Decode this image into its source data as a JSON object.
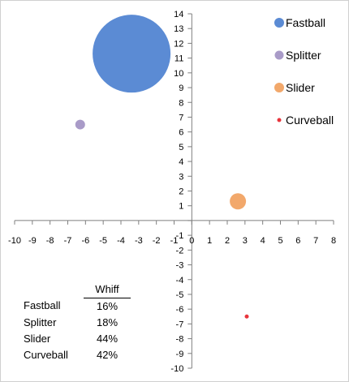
{
  "chart_data": {
    "type": "scatter",
    "subtype": "bubble",
    "xlim": [
      -10,
      8
    ],
    "ylim": [
      -10,
      14
    ],
    "x_ticks": [
      -10,
      -9,
      -8,
      -7,
      -6,
      -5,
      -4,
      -3,
      -2,
      -1,
      0,
      1,
      2,
      3,
      4,
      5,
      6,
      7,
      8
    ],
    "y_ticks": [
      -10,
      -9,
      -8,
      -7,
      -6,
      -5,
      -4,
      -3,
      -2,
      -1,
      0,
      1,
      2,
      3,
      4,
      5,
      6,
      7,
      8,
      9,
      10,
      11,
      12,
      13,
      14
    ],
    "grid": false,
    "legend_position": "top-right",
    "series": [
      {
        "name": "Fastball",
        "x": -3.4,
        "y": 11.3,
        "size": 16,
        "color": "#5b8bd4"
      },
      {
        "name": "Splitter",
        "x": -6.3,
        "y": 6.5,
        "size": 18,
        "color": "#a99bc8"
      },
      {
        "name": "Slider",
        "x": 2.6,
        "y": 1.3,
        "size": 44,
        "color": "#f2a86b"
      },
      {
        "name": "Curveball",
        "x": 3.1,
        "y": -6.5,
        "size": 42,
        "color": "#e8343c"
      }
    ],
    "bubble_radius_px": [
      48,
      6,
      10,
      2.5
    ]
  },
  "table": {
    "header": "Whiff",
    "rows": [
      {
        "name": "Fastball",
        "value": "16%"
      },
      {
        "name": "Splitter",
        "value": "18%"
      },
      {
        "name": "Slider",
        "value": "44%"
      },
      {
        "name": "Curveball",
        "value": "42%"
      }
    ]
  }
}
